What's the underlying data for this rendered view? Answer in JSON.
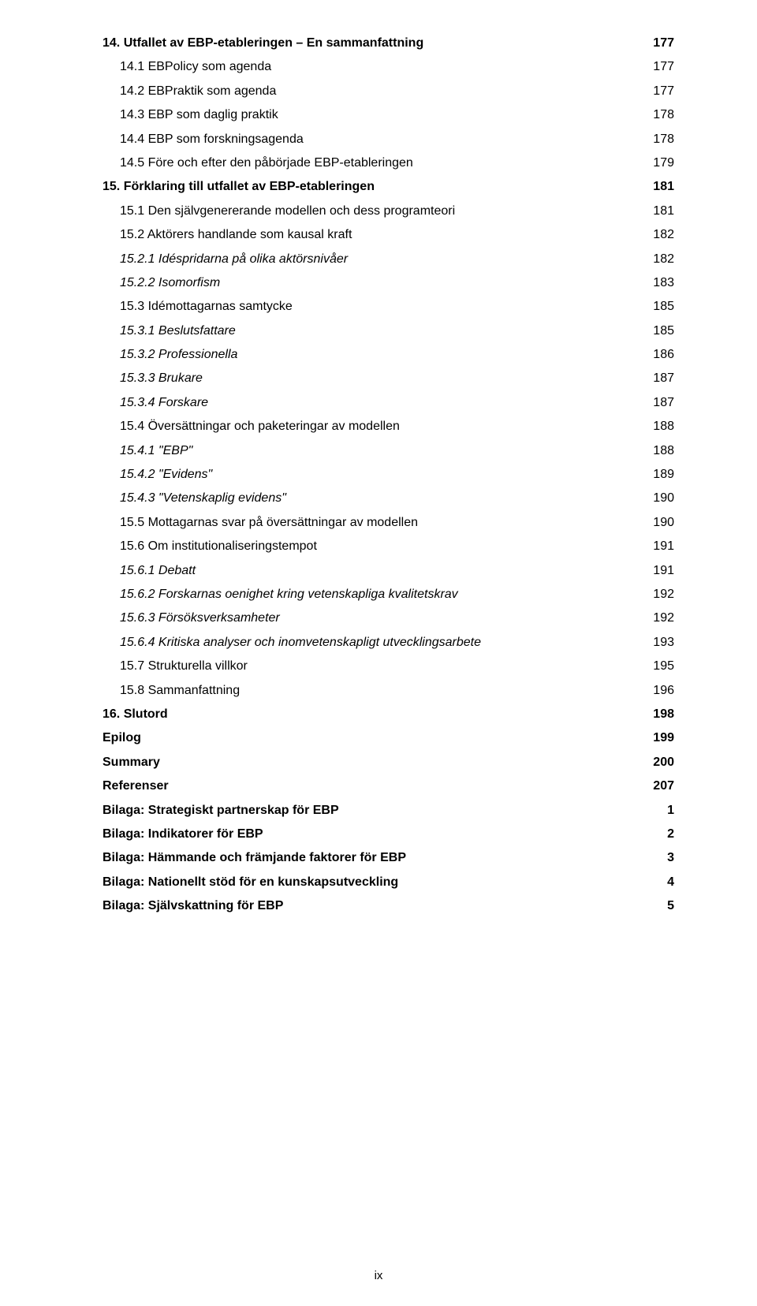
{
  "toc": [
    {
      "level": 0,
      "bold": true,
      "italic": false,
      "title": "14. Utfallet av EBP-etableringen – En sammanfattning",
      "page": "177"
    },
    {
      "level": 1,
      "bold": false,
      "italic": false,
      "title": "14.1 EBPolicy som agenda",
      "page": "177"
    },
    {
      "level": 1,
      "bold": false,
      "italic": false,
      "title": "14.2 EBPraktik som agenda",
      "page": "177"
    },
    {
      "level": 1,
      "bold": false,
      "italic": false,
      "title": "14.3 EBP som daglig praktik",
      "page": "178"
    },
    {
      "level": 1,
      "bold": false,
      "italic": false,
      "title": "14.4 EBP som forskningsagenda",
      "page": "178"
    },
    {
      "level": 1,
      "bold": false,
      "italic": false,
      "title": "14.5 Före och efter den påbörjade EBP-etableringen",
      "page": "179"
    },
    {
      "level": 0,
      "bold": true,
      "italic": false,
      "title": "15. Förklaring till utfallet av EBP-etableringen",
      "page": "181"
    },
    {
      "level": 1,
      "bold": false,
      "italic": false,
      "title": "15.1 Den självgenererande modellen och dess programteori",
      "page": "181"
    },
    {
      "level": 1,
      "bold": false,
      "italic": false,
      "title": "15.2 Aktörers handlande som kausal kraft",
      "page": "182"
    },
    {
      "level": 2,
      "bold": false,
      "italic": true,
      "title": "15.2.1 Idéspridarna på olika aktörsnivåer",
      "page": "182"
    },
    {
      "level": 2,
      "bold": false,
      "italic": true,
      "title": "15.2.2 Isomorfism",
      "page": "183"
    },
    {
      "level": 1,
      "bold": false,
      "italic": false,
      "title": "15.3 Idémottagarnas samtycke",
      "page": "185"
    },
    {
      "level": 2,
      "bold": false,
      "italic": true,
      "title": "15.3.1 Beslutsfattare",
      "page": "185"
    },
    {
      "level": 2,
      "bold": false,
      "italic": true,
      "title": "15.3.2 Professionella",
      "page": "186"
    },
    {
      "level": 2,
      "bold": false,
      "italic": true,
      "title": "15.3.3 Brukare",
      "page": "187"
    },
    {
      "level": 2,
      "bold": false,
      "italic": true,
      "title": "15.3.4 Forskare",
      "page": "187"
    },
    {
      "level": 1,
      "bold": false,
      "italic": false,
      "title": "15.4 Översättningar och paketeringar av modellen",
      "page": "188"
    },
    {
      "level": 2,
      "bold": false,
      "italic": true,
      "title": "15.4.1 \"EBP\"",
      "page": "188"
    },
    {
      "level": 2,
      "bold": false,
      "italic": true,
      "title": "15.4.2 \"Evidens\"",
      "page": "189"
    },
    {
      "level": 2,
      "bold": false,
      "italic": true,
      "title": "15.4.3 \"Vetenskaplig evidens\"",
      "page": "190"
    },
    {
      "level": 1,
      "bold": false,
      "italic": false,
      "title": "15.5 Mottagarnas svar på översättningar av modellen",
      "page": "190"
    },
    {
      "level": 1,
      "bold": false,
      "italic": false,
      "title": "15.6 Om institutionaliseringstempot",
      "page": "191"
    },
    {
      "level": 2,
      "bold": false,
      "italic": true,
      "title": "15.6.1 Debatt",
      "page": "191"
    },
    {
      "level": 2,
      "bold": false,
      "italic": true,
      "title": "15.6.2 Forskarnas oenighet kring vetenskapliga kvalitetskrav",
      "page": "192"
    },
    {
      "level": 2,
      "bold": false,
      "italic": true,
      "title": "15.6.3 Försöksverksamheter",
      "page": "192"
    },
    {
      "level": 2,
      "bold": false,
      "italic": true,
      "title": "15.6.4 Kritiska analyser och inomvetenskapligt utvecklingsarbete",
      "page": "193"
    },
    {
      "level": 1,
      "bold": false,
      "italic": false,
      "title": "15.7 Strukturella villkor",
      "page": "195"
    },
    {
      "level": 1,
      "bold": false,
      "italic": false,
      "title": "15.8 Sammanfattning",
      "page": "196"
    },
    {
      "level": 0,
      "bold": true,
      "italic": false,
      "title": "16. Slutord",
      "page": "198"
    },
    {
      "level": 0,
      "bold": true,
      "italic": false,
      "title": "Epilog",
      "page": "199"
    },
    {
      "level": 0,
      "bold": true,
      "italic": false,
      "title": "Summary",
      "page": "200"
    },
    {
      "level": 0,
      "bold": true,
      "italic": false,
      "title": "Referenser",
      "page": "207"
    },
    {
      "level": 0,
      "bold": true,
      "italic": false,
      "title": "Bilaga: Strategiskt partnerskap för EBP",
      "page": "1"
    },
    {
      "level": 0,
      "bold": true,
      "italic": false,
      "title": "Bilaga: Indikatorer för EBP",
      "page": "2"
    },
    {
      "level": 0,
      "bold": true,
      "italic": false,
      "title": "Bilaga: Hämmande och främjande faktorer för EBP",
      "page": "3"
    },
    {
      "level": 0,
      "bold": true,
      "italic": false,
      "title": "Bilaga: Nationellt stöd för en kunskapsutveckling",
      "page": "4"
    },
    {
      "level": 0,
      "bold": true,
      "italic": false,
      "title": "Bilaga: Självskattning för EBP",
      "page": "5"
    }
  ],
  "footer": "ix"
}
